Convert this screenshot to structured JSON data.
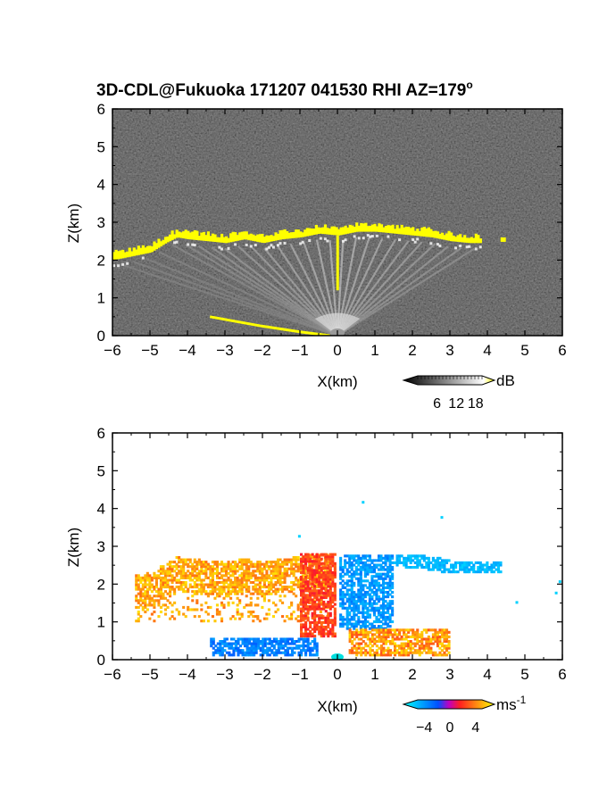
{
  "title": "3D-CDL@Fukuoka 171207 041530 RHI AZ=179",
  "title_degree": "o",
  "chart_data": [
    {
      "type": "heatmap",
      "panel": "top",
      "quantity": "backscatter intensity",
      "xlabel": "X(km)",
      "ylabel": "Z(km)",
      "xlim": [
        -6,
        6
      ],
      "ylim": [
        0,
        6
      ],
      "xticks": [
        "-6",
        "-5",
        "-4",
        "-3",
        "-2",
        "-1",
        "0",
        "1",
        "2",
        "3",
        "4",
        "5",
        "6"
      ],
      "yticks": [
        "0",
        "1",
        "2",
        "3",
        "4",
        "5",
        "6"
      ],
      "colorbar": {
        "unit": "dB",
        "ticks": [
          "6",
          "12",
          "18"
        ],
        "range": [
          0,
          20
        ],
        "colors": [
          "#000000",
          "#ffffff",
          "#ffff00"
        ]
      },
      "background_color": "#262626",
      "layer_color": "#ffff00",
      "cloud_layer": {
        "x": [
          -6.0,
          -5.5,
          -5.0,
          -4.6,
          -4.3,
          -4.0,
          -3.5,
          -3.0,
          -2.5,
          -2.0,
          -1.5,
          -1.0,
          -0.5,
          0.0,
          0.5,
          1.0,
          1.5,
          2.0,
          2.5,
          3.0,
          3.5,
          3.8
        ],
        "z": [
          2.0,
          2.1,
          2.2,
          2.45,
          2.6,
          2.55,
          2.5,
          2.45,
          2.55,
          2.45,
          2.55,
          2.6,
          2.7,
          2.65,
          2.75,
          2.75,
          2.7,
          2.65,
          2.6,
          2.5,
          2.45,
          2.45
        ]
      },
      "surface_echo": {
        "x": [
          -3.4,
          -2.0,
          -1.0,
          -0.2
        ],
        "z": [
          0.5,
          0.25,
          0.1,
          0.0
        ]
      },
      "isolated_echo": {
        "x": 4.35,
        "z": 2.55
      }
    },
    {
      "type": "heatmap",
      "panel": "bottom",
      "quantity": "radial velocity",
      "xlabel": "X(km)",
      "ylabel": "Z(km)",
      "xlim": [
        -6,
        6
      ],
      "ylim": [
        0,
        6
      ],
      "xticks": [
        "-6",
        "-5",
        "-4",
        "-3",
        "-2",
        "-1",
        "0",
        "1",
        "2",
        "3",
        "4",
        "5",
        "6"
      ],
      "yticks": [
        "0",
        "1",
        "2",
        "3",
        "4",
        "5",
        "6"
      ],
      "colorbar": {
        "unit": "ms",
        "unit_exponent": "-1",
        "ticks": [
          "-4",
          "0",
          "4"
        ],
        "range": [
          -5,
          5
        ],
        "colors": [
          "#00ffff",
          "#0050ff",
          "#ff2020",
          "#ffff00"
        ]
      },
      "velocity_regions": [
        {
          "name": "upper-left",
          "x": [
            -5.4,
            -0.2
          ],
          "z": [
            1.0,
            2.8
          ],
          "v": [
            2.5,
            4.5
          ]
        },
        {
          "name": "central-left",
          "x": [
            -1.0,
            -0.05
          ],
          "z": [
            0.6,
            2.8
          ],
          "v": [
            1.0,
            2.5
          ]
        },
        {
          "name": "central-right",
          "x": [
            0.05,
            1.5
          ],
          "z": [
            0.8,
            2.8
          ],
          "v": [
            -3.5,
            -2.0
          ]
        },
        {
          "name": "upper-right",
          "x": [
            1.5,
            4.4
          ],
          "z": [
            2.3,
            2.8
          ],
          "v": [
            -4.0,
            -3.0
          ]
        },
        {
          "name": "lower-left",
          "x": [
            -3.4,
            -0.5
          ],
          "z": [
            0.1,
            0.6
          ],
          "v": [
            -3.0,
            -1.5
          ]
        },
        {
          "name": "lower-right",
          "x": [
            0.3,
            3.0
          ],
          "z": [
            0.1,
            0.8
          ],
          "v": [
            2.0,
            4.5
          ]
        }
      ]
    }
  ]
}
